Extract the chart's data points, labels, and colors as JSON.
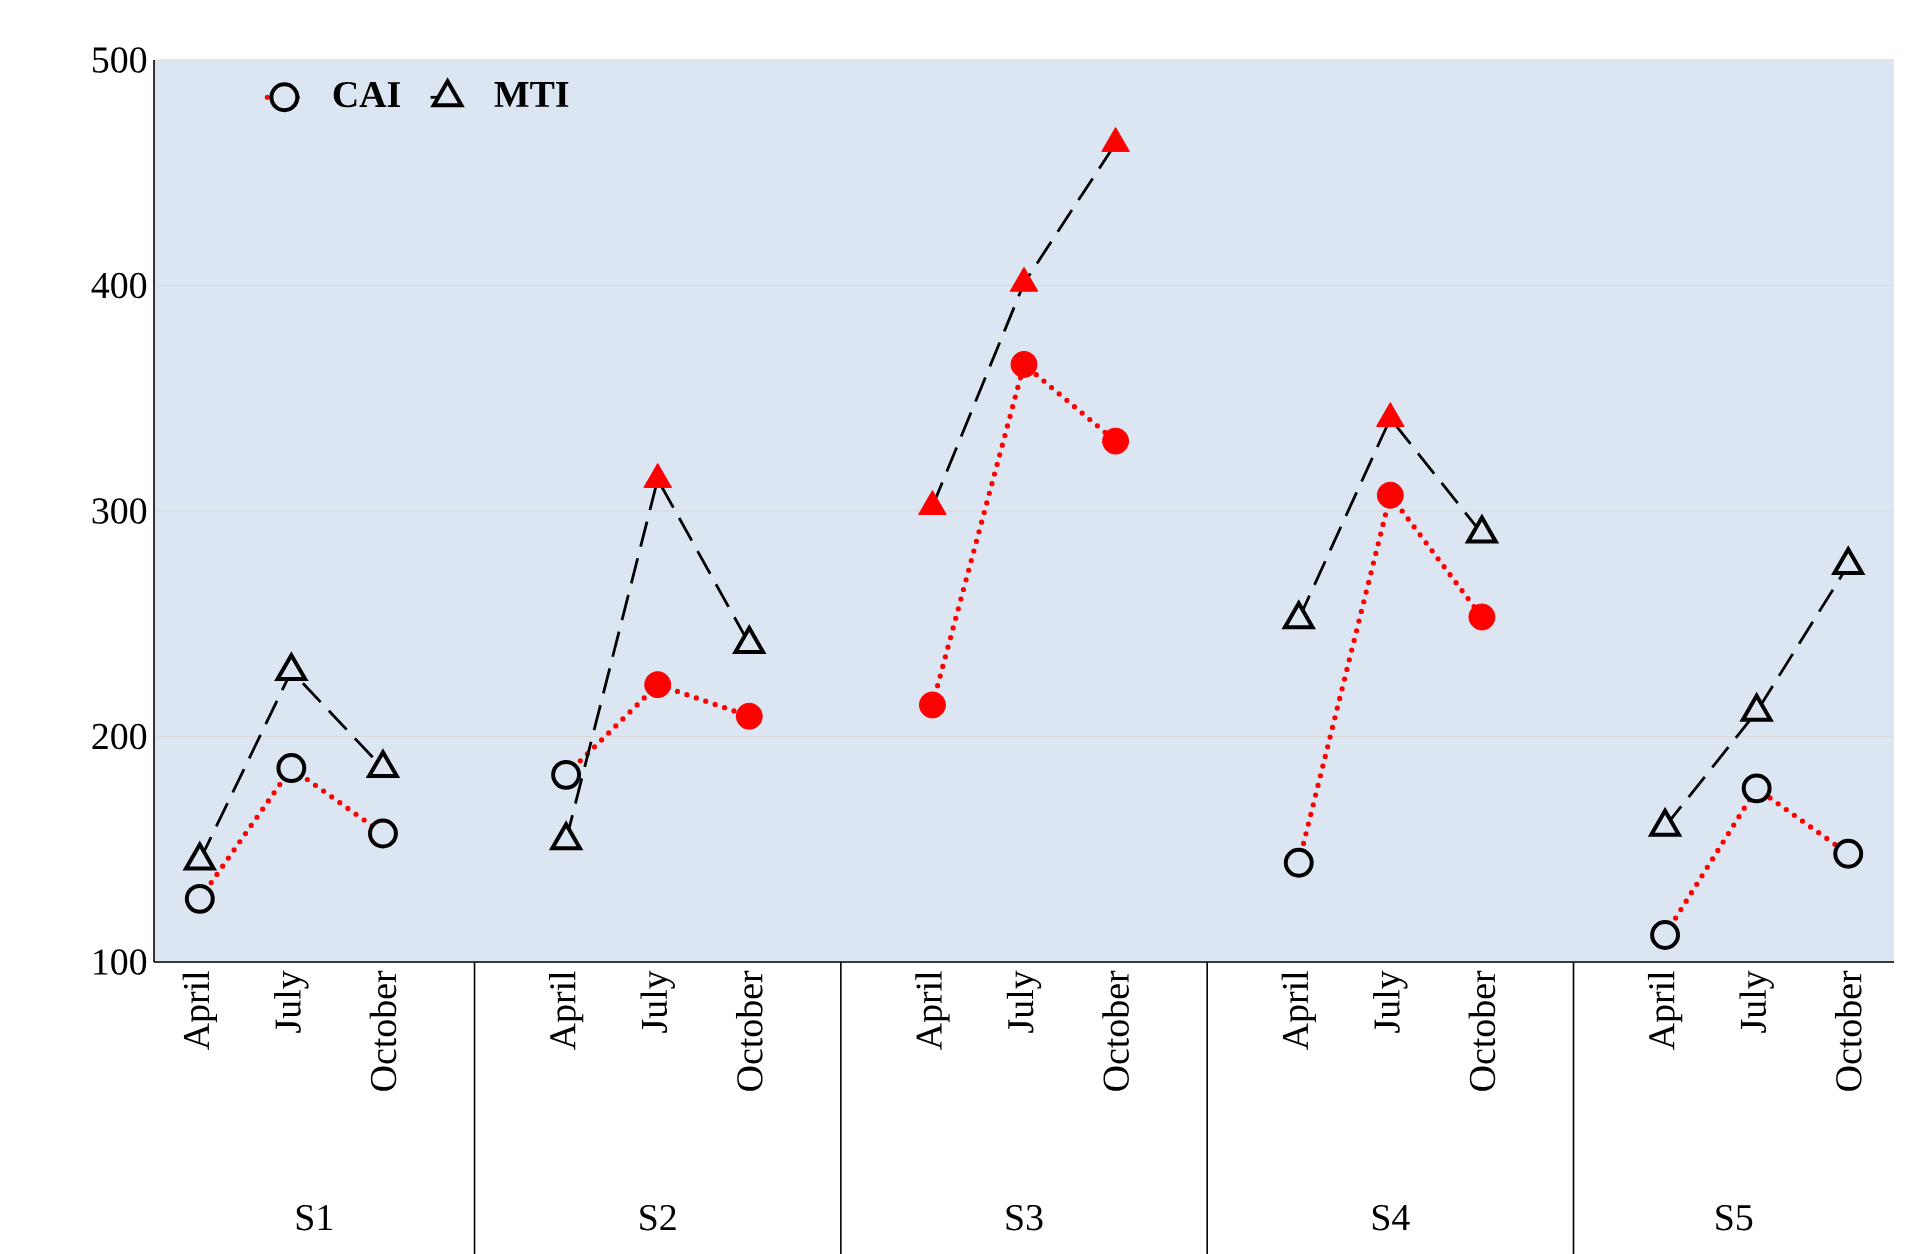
{
  "chart_data": {
    "type": "line",
    "categories": [
      "April",
      "July",
      "October",
      null,
      "April",
      "July",
      "October",
      null,
      "April",
      "July",
      "October",
      null,
      "April",
      "July",
      "October",
      null,
      "April",
      "July",
      "October"
    ],
    "series": [
      {
        "name": "CAI",
        "color": "#ff0000",
        "line_style": "dotted",
        "marker": "circle",
        "values": [
          128,
          186,
          157,
          null,
          183,
          223,
          209,
          null,
          214,
          365,
          331,
          null,
          144,
          307,
          253,
          null,
          112,
          177,
          148
        ],
        "colors": [
          "#000000",
          "#000000",
          "#000000",
          null,
          "#000000",
          "#ff0000",
          "#ff0000",
          null,
          "#ff0000",
          "#ff0000",
          "#ff0000",
          null,
          "#000000",
          "#ff0000",
          "#ff0000",
          null,
          "#000000",
          "#000000",
          "#000000"
        ]
      },
      {
        "name": "MTI",
        "color": "#000000",
        "line_style": "dashed",
        "marker": "triangle",
        "values": [
          145,
          229,
          186,
          null,
          154,
          314,
          241,
          null,
          302,
          401,
          463,
          null,
          252,
          341,
          290,
          null,
          160,
          211,
          276
        ],
        "colors": [
          "#000000",
          "#000000",
          "#000000",
          null,
          "#000000",
          "#ff0000",
          "#000000",
          null,
          "#ff0000",
          "#ff0000",
          "#ff0000",
          null,
          "#000000",
          "#ff0000",
          "#000000",
          null,
          "#000000",
          "#000000",
          "#000000"
        ]
      }
    ],
    "annotations": [
      "S1",
      "S2",
      "S3",
      "S4",
      "S5"
    ],
    "ylim": [
      100,
      500
    ],
    "yticks": [
      100,
      200,
      300,
      400,
      500
    ],
    "grid": "y",
    "legend": "top left"
  }
}
